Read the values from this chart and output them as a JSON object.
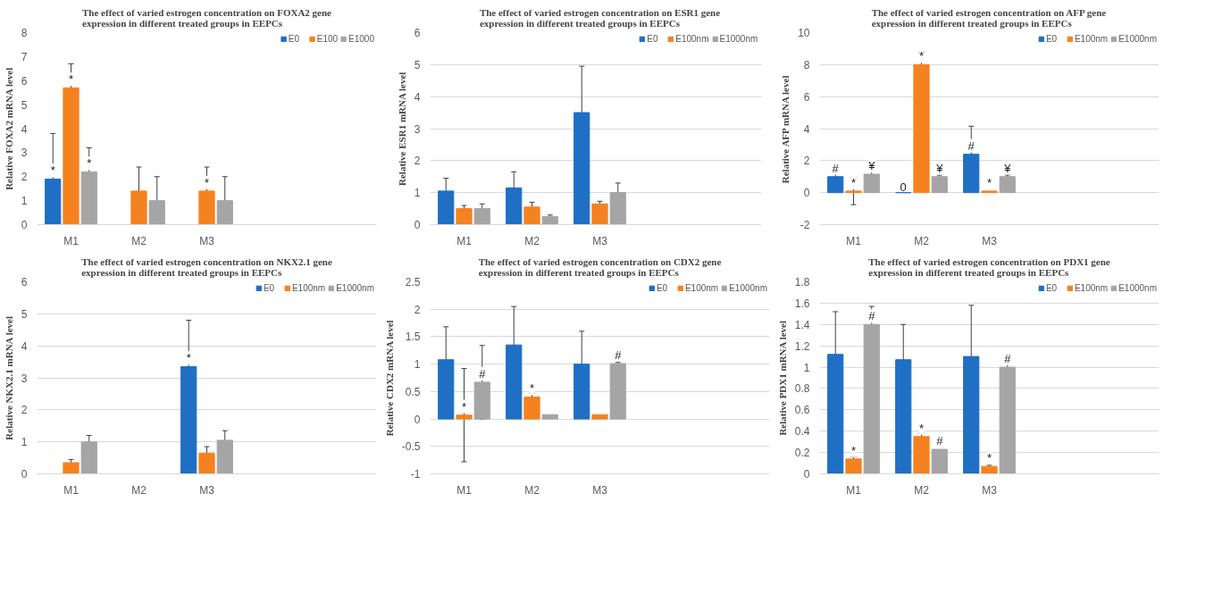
{
  "chart_data": [
    {
      "type": "bar",
      "title": "The effect of varied estrogen concentration on FOXA2 gene expression in different treated groups in EEPCs",
      "ylabel": "Relative FOXA2 mRNA level",
      "categories": [
        "M1",
        "M2",
        "M3"
      ],
      "ylim": [
        0,
        8
      ],
      "yticks": [
        0,
        1,
        2,
        3,
        4,
        5,
        6,
        7,
        8
      ],
      "grid": false,
      "legend": "top right",
      "series": [
        {
          "name": "E0",
          "color": "#1f6fc5",
          "values": [
            1.9,
            null,
            null
          ],
          "errors": [
            1.9,
            null,
            null
          ],
          "value_labels": [
            "*",
            null,
            null
          ]
        },
        {
          "name": "E100",
          "color": "#f58220",
          "values": [
            5.7,
            1.4,
            1.4
          ],
          "errors": [
            1.0,
            1.0,
            1.0
          ],
          "value_labels": [
            "*",
            null,
            "*"
          ]
        },
        {
          "name": "E1000",
          "color": "#a5a5a5",
          "values": [
            2.2,
            1.0,
            1.0
          ],
          "errors": [
            1.0,
            1.0,
            1.0
          ],
          "value_labels": [
            "*",
            null,
            null
          ]
        }
      ]
    },
    {
      "type": "bar",
      "title": "The effect of varied estrogen concentration on ESR1 gene expression in different treated groups in EEPCs",
      "ylabel": "Relative ESR1 mRNA level",
      "categories": [
        "M1",
        "M2",
        "M3"
      ],
      "ylim": [
        0,
        6
      ],
      "yticks": [
        0,
        1,
        2,
        3,
        4,
        5,
        6
      ],
      "grid": "y",
      "legend": "top right",
      "series": [
        {
          "name": "E0",
          "color": "#1f6fc5",
          "values": [
            1.05,
            1.15,
            3.5
          ],
          "errors": [
            0.4,
            0.5,
            1.45
          ]
        },
        {
          "name": "E100nm",
          "color": "#f58220",
          "values": [
            0.5,
            0.55,
            0.65
          ],
          "errors": [
            0.1,
            0.15,
            0.08
          ]
        },
        {
          "name": "E1000nm",
          "color": "#a5a5a5",
          "values": [
            0.5,
            0.25,
            1.0
          ],
          "errors": [
            0.15,
            0.05,
            0.3
          ]
        }
      ]
    },
    {
      "type": "bar",
      "title": "The effect of varied estrogen concentration on AFP gene expression in different treated groups in EEPCs",
      "ylabel": "Relative AFP mRNA level",
      "categories": [
        "M1",
        "M2",
        "M3"
      ],
      "ylim": [
        -2,
        10
      ],
      "yticks": [
        -2,
        0,
        2,
        4,
        6,
        8,
        10
      ],
      "grid": "y",
      "legend": "top right",
      "series": [
        {
          "name": "E0",
          "color": "#1f6fc5",
          "values": [
            1.0,
            0,
            2.4
          ],
          "errors": [
            0.6,
            null,
            1.75
          ],
          "value_labels": [
            "#",
            "0",
            "#"
          ]
        },
        {
          "name": "E100nm",
          "color": "#f58220",
          "values": [
            0.1,
            8.0,
            0.1
          ],
          "errors": [
            0.85,
            0.8,
            null
          ],
          "value_labels": [
            "*",
            "*",
            "*"
          ]
        },
        {
          "name": "E1000nm",
          "color": "#a5a5a5",
          "values": [
            1.15,
            1.0,
            1.0
          ],
          "errors": [
            0.7,
            0.1,
            0.1
          ],
          "value_labels": [
            "¥",
            "¥",
            "¥"
          ]
        }
      ]
    },
    {
      "type": "bar",
      "title": "The effect of varied estrogen concentration on NKX2.1 gene expression in different treated groups in EEPCs",
      "ylabel": "Relative NKX2.1 mRNA level",
      "categories": [
        "M1",
        "M2",
        "M3"
      ],
      "ylim": [
        0,
        6
      ],
      "yticks": [
        0,
        1,
        2,
        3,
        4,
        5,
        6
      ],
      "grid": "y",
      "legend": "top right",
      "series": [
        {
          "name": "E0",
          "color": "#1f6fc5",
          "values": [
            null,
            null,
            3.35
          ],
          "errors": [
            null,
            null,
            1.45
          ],
          "value_labels": [
            null,
            null,
            "*"
          ]
        },
        {
          "name": "E100nm",
          "color": "#f58220",
          "values": [
            0.35,
            null,
            0.65
          ],
          "errors": [
            0.1,
            null,
            0.2
          ]
        },
        {
          "name": "E1000nm",
          "color": "#a5a5a5",
          "values": [
            1.0,
            null,
            1.05
          ],
          "errors": [
            0.2,
            null,
            0.3
          ]
        }
      ]
    },
    {
      "type": "bar",
      "title": "The effect of varied estrogen concentration on CDX2 gene expression in different treated groups in EEPCs",
      "ylabel": "Relative CDX2 mRNA level",
      "categories": [
        "M1",
        "M2",
        "M3"
      ],
      "ylim": [
        -1,
        2.5
      ],
      "yticks": [
        -1,
        -0.5,
        0,
        0.5,
        1,
        1.5,
        2,
        2.5
      ],
      "grid": "y",
      "legend": "top right",
      "series": [
        {
          "name": "E0",
          "color": "#1f6fc5",
          "values": [
            1.08,
            1.35,
            1.0
          ],
          "errors": [
            0.6,
            0.7,
            0.6
          ]
        },
        {
          "name": "E100nm",
          "color": "#f58220",
          "values": [
            0.07,
            0.4,
            0.08
          ],
          "errors": [
            0.85,
            0.07,
            null
          ],
          "value_labels": [
            "*",
            "*",
            null
          ]
        },
        {
          "name": "E1000nm",
          "color": "#a5a5a5",
          "values": [
            0.67,
            0.08,
            1.01
          ],
          "errors": [
            0.67,
            null,
            0.02
          ],
          "value_labels": [
            "#",
            null,
            "#"
          ]
        }
      ]
    },
    {
      "type": "bar",
      "title": "The effect of varied estrogen concentration on PDX1 gene expression in different treated groups in EEPCs",
      "ylabel": "Relative PDX1 mRNA level",
      "categories": [
        "M1",
        "M2",
        "M3"
      ],
      "ylim": [
        0,
        1.8
      ],
      "yticks": [
        0,
        0.2,
        0.4,
        0.6,
        0.8,
        1,
        1.2,
        1.4,
        1.6,
        1.8
      ],
      "grid": "y",
      "legend": "top right",
      "series": [
        {
          "name": "E0",
          "color": "#1f6fc5",
          "values": [
            1.12,
            1.07,
            1.1
          ],
          "errors": [
            0.4,
            0.33,
            0.48
          ]
        },
        {
          "name": "E100nm",
          "color": "#f58220",
          "values": [
            0.14,
            0.35,
            0.07
          ],
          "errors": [
            0.02,
            0.03,
            0.01
          ],
          "value_labels": [
            "*",
            "*",
            "*"
          ]
        },
        {
          "name": "E1000nm",
          "color": "#a5a5a5",
          "values": [
            1.4,
            0.23,
            1.0
          ],
          "errors": [
            0.17,
            null,
            0.12
          ],
          "value_labels": [
            "#",
            "#",
            "#"
          ]
        }
      ]
    }
  ]
}
